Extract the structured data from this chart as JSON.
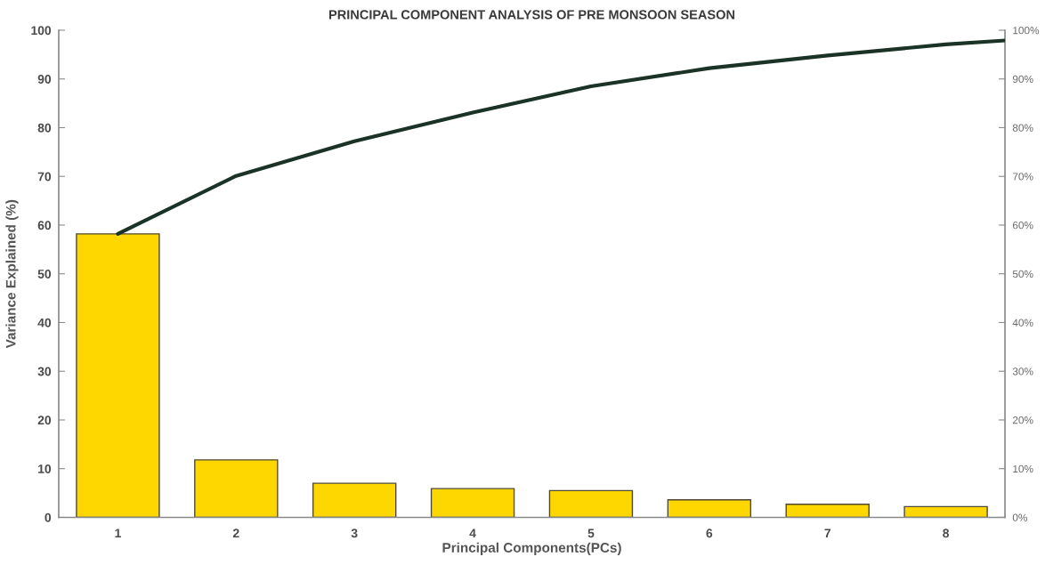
{
  "chart_data": {
    "type": "bar",
    "title": "PRINCIPAL COMPONENT ANALYSIS OF PRE MONSOON SEASON",
    "xlabel": "Principal Components(PCs)",
    "ylabel": "Variance Explained (%)",
    "x": [
      1,
      2,
      3,
      4,
      5,
      6,
      7,
      8
    ],
    "series": [
      {
        "color": "#ffd700",
        "values": [
          58.2,
          11.8,
          7.0,
          5.9,
          5.5,
          3.6,
          2.7,
          2.2
        ]
      },
      {
        "type": "line",
        "axis": "y2",
        "color": "#1a3326",
        "x": [
          1,
          2,
          3,
          4,
          5,
          6,
          7,
          8,
          8.5
        ],
        "values": [
          58.2,
          70.1,
          77.2,
          83.1,
          88.5,
          92.2,
          94.8,
          97.1,
          97.9
        ]
      }
    ],
    "xlim": [
      0.5,
      8.5
    ],
    "xticks": [
      1,
      2,
      3,
      4,
      5,
      6,
      7,
      8
    ],
    "ylim": [
      0,
      100
    ],
    "yticks": [
      0,
      10,
      20,
      30,
      40,
      50,
      60,
      70,
      80,
      90,
      100
    ],
    "y2lim": [
      0,
      100
    ],
    "y2ticks": [
      {
        "value": 0,
        "label": "0%"
      },
      {
        "value": 10,
        "label": "10%"
      },
      {
        "value": 20,
        "label": "20%"
      },
      {
        "value": 30,
        "label": "30%"
      },
      {
        "value": 40,
        "label": "40%"
      },
      {
        "value": 50,
        "label": "50%"
      },
      {
        "value": 60,
        "label": "60%"
      },
      {
        "value": 70,
        "label": "70%"
      },
      {
        "value": 80,
        "label": "80%"
      },
      {
        "value": 90,
        "label": "90%"
      },
      {
        "value": 100,
        "label": "100%"
      }
    ]
  }
}
